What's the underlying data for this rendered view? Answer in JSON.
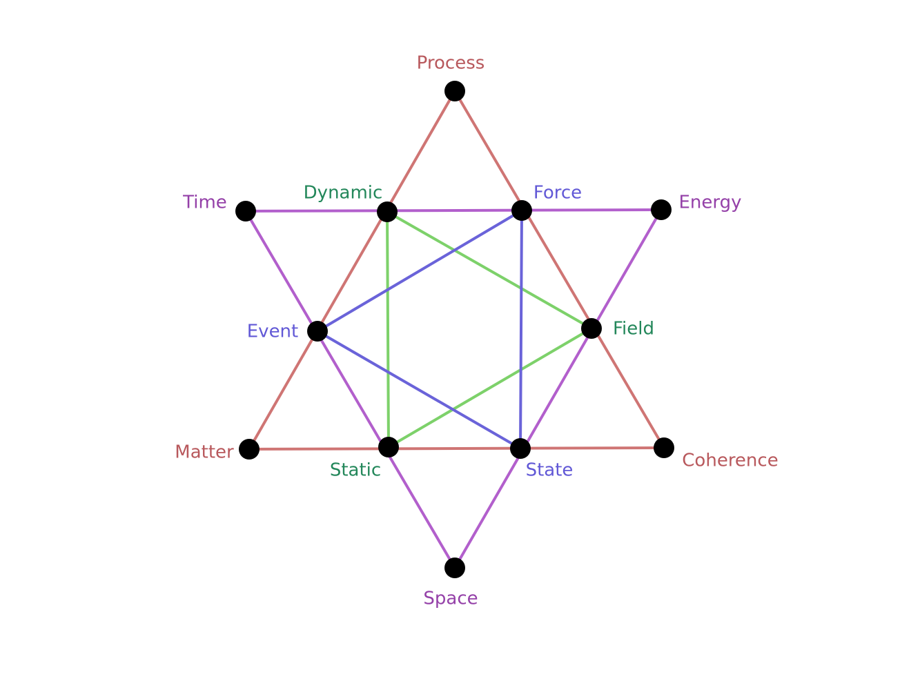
{
  "colors": {
    "red": "#cf7574",
    "purple": "#b25fcc",
    "green": "#7dd16a",
    "blue": "#6a63d9",
    "label_red": "#b8585c",
    "label_purple": "#9440a8",
    "label_green": "#23875a",
    "label_blue": "#6158d6",
    "node": "#000000"
  },
  "nodes": [
    {
      "id": "process",
      "label": "Process",
      "label_color": "label_red"
    },
    {
      "id": "matter",
      "label": "Matter",
      "label_color": "label_red"
    },
    {
      "id": "coherence",
      "label": "Coherence",
      "label_color": "label_red"
    },
    {
      "id": "time",
      "label": "Time",
      "label_color": "label_purple"
    },
    {
      "id": "energy",
      "label": "Energy",
      "label_color": "label_purple"
    },
    {
      "id": "space",
      "label": "Space",
      "label_color": "label_purple"
    },
    {
      "id": "dynamic",
      "label": "Dynamic",
      "label_color": "label_green"
    },
    {
      "id": "field",
      "label": "Field",
      "label_color": "label_green"
    },
    {
      "id": "static",
      "label": "Static",
      "label_color": "label_green"
    },
    {
      "id": "force",
      "label": "Force",
      "label_color": "label_blue"
    },
    {
      "id": "event",
      "label": "Event",
      "label_color": "label_blue"
    },
    {
      "id": "state",
      "label": "State",
      "label_color": "label_blue"
    }
  ],
  "triangles": [
    {
      "name": "red-triangle",
      "color": "red",
      "vertices": [
        "process",
        "coherence",
        "matter"
      ]
    },
    {
      "name": "purple-triangle",
      "color": "purple",
      "vertices": [
        "time",
        "energy",
        "space"
      ]
    },
    {
      "name": "green-triangle",
      "color": "green",
      "vertices": [
        "dynamic",
        "field",
        "static"
      ]
    },
    {
      "name": "blue-triangle",
      "color": "blue",
      "vertices": [
        "force",
        "state",
        "event"
      ]
    }
  ]
}
